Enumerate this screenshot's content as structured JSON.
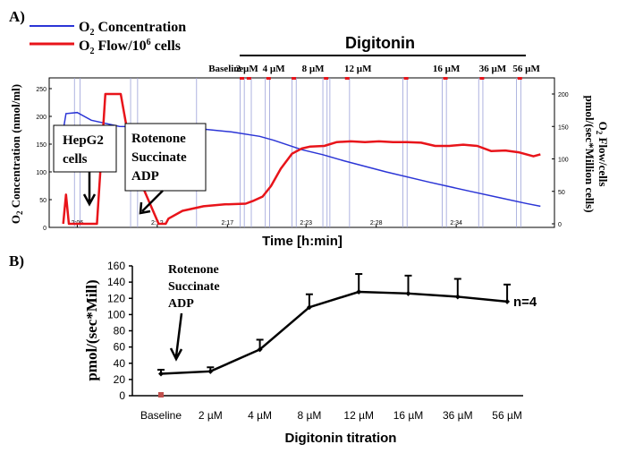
{
  "panels": {
    "a": {
      "label": "A)",
      "legend": [
        {
          "main": "O",
          "sub": "2",
          "rest": " Concentration",
          "color": "#2b35d6"
        },
        {
          "main": "O",
          "sub": "2",
          "rest": " Flow/10",
          "sup": "6",
          "tail": " cells",
          "color": "#e8141a"
        }
      ],
      "digitonin_label": "Digitonin",
      "step_labels": [
        "Baseline",
        "2 µM",
        "4 µM",
        "8 µM",
        "12 µM",
        "16 µM",
        "36 µM",
        "56 µM"
      ],
      "ylabel_left": {
        "pre": "O",
        "sub": "2",
        "post": " Concentration (nmol/ml)"
      },
      "ylabel_right_1": {
        "pre": "O",
        "sub": "2",
        "post": " Flow/cells"
      },
      "ylabel_right_2": "pmol/(sec*Million cells)",
      "xlabel": "Time [h:min]",
      "left_ticks": [
        "250",
        "200",
        "150",
        "100",
        "50",
        "0"
      ],
      "right_ticks": [
        "200",
        "150",
        "100",
        "50",
        "0"
      ],
      "time_ticks": [
        "2:06",
        "2:12",
        "2:17",
        "2:23",
        "2:28",
        "2:34"
      ],
      "annotation_hepg2": [
        "HepG2",
        "cells"
      ],
      "annotation_rsa": [
        "Rotenone",
        "Succinate",
        "ADP"
      ]
    },
    "b": {
      "label": "B)",
      "ylabel": "pmol/(sec*Mill)",
      "xlabel": "Digitonin titration",
      "n_label": "n=4",
      "annotation": [
        "Rotenone",
        "Succinate",
        "ADP"
      ],
      "y_ticks": [
        "0",
        "20",
        "40",
        "60",
        "80",
        "100",
        "120",
        "140",
        "160"
      ]
    }
  },
  "chart_data": [
    {
      "type": "line",
      "title": "",
      "xlabel": "Time [h:min]",
      "x_ticks": [
        "2:06",
        "2:12",
        "2:17",
        "2:23",
        "2:28",
        "2:34"
      ],
      "series": [
        {
          "name": "O2 Concentration",
          "axis": "left",
          "unit": "nmol/ml",
          "color": "#2b35d6",
          "points": [
            [
              0.0,
              175
            ],
            [
              0.2,
              205
            ],
            [
              1.0,
              207
            ],
            [
              2.0,
              193
            ],
            [
              4.0,
              182
            ],
            [
              6.0,
              181
            ],
            [
              8.0,
              180
            ],
            [
              10.0,
              177
            ],
            [
              12.0,
              172
            ],
            [
              14.0,
              164
            ],
            [
              15.0,
              157
            ],
            [
              17.0,
              140
            ],
            [
              18.5,
              131
            ],
            [
              20.0,
              120
            ],
            [
              23.0,
              100
            ],
            [
              26.0,
              82
            ],
            [
              29.0,
              65
            ],
            [
              31.0,
              54
            ],
            [
              33.0,
              43
            ],
            [
              34.0,
              38
            ]
          ]
        },
        {
          "name": "O2 Flow/10^6 cells",
          "axis": "right",
          "unit": "pmol/(sec*Million cells)",
          "color": "#e8141a",
          "points": [
            [
              0.0,
              0
            ],
            [
              0.2,
              45
            ],
            [
              0.4,
              0
            ],
            [
              2.4,
              0
            ],
            [
              3.0,
              200
            ],
            [
              4.1,
              200
            ],
            [
              5.0,
              90
            ],
            [
              6.8,
              0
            ],
            [
              7.3,
              0
            ],
            [
              7.5,
              8
            ],
            [
              8.5,
              20
            ],
            [
              10.0,
              27
            ],
            [
              11.5,
              30
            ],
            [
              13.0,
              31
            ],
            [
              13.5,
              35
            ],
            [
              14.2,
              42
            ],
            [
              14.8,
              58
            ],
            [
              15.5,
              85
            ],
            [
              16.3,
              108
            ],
            [
              17.0,
              116
            ],
            [
              17.6,
              119
            ],
            [
              18.6,
              120
            ],
            [
              19.5,
              126
            ],
            [
              20.5,
              127
            ],
            [
              21.5,
              126
            ],
            [
              22.5,
              127
            ],
            [
              23.5,
              126
            ],
            [
              24.5,
              126
            ],
            [
              25.5,
              125
            ],
            [
              26.5,
              120
            ],
            [
              27.5,
              120
            ],
            [
              28.5,
              122
            ],
            [
              29.5,
              120
            ],
            [
              30.5,
              112
            ],
            [
              31.5,
              113
            ],
            [
              32.5,
              110
            ],
            [
              33.5,
              104
            ],
            [
              34.0,
              107
            ]
          ]
        }
      ],
      "left_ylim": [
        0,
        250
      ],
      "right_ylim": [
        0,
        200
      ],
      "legend_position": "top-left"
    },
    {
      "type": "line",
      "title": "",
      "xlabel": "Digitonin titration",
      "ylabel": "pmol/(sec*Mill)",
      "categories": [
        "Baseline",
        "2 µM",
        "4 µM",
        "8 µM",
        "12 µM",
        "16 µM",
        "36 µM",
        "56 µM"
      ],
      "values": [
        27,
        30,
        57,
        109,
        128,
        126,
        122,
        116
      ],
      "errors": [
        5,
        5,
        12,
        16,
        22,
        22,
        22,
        21
      ],
      "ylim": [
        0,
        160
      ],
      "marker_color": "#c0504d"
    }
  ]
}
